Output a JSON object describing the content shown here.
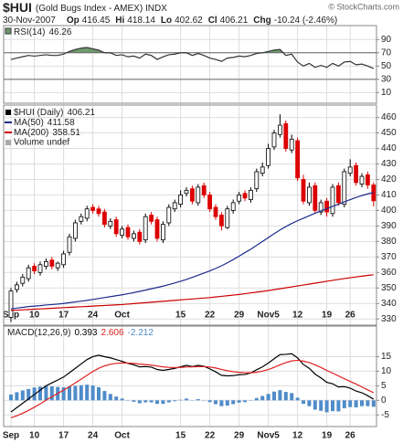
{
  "header": {
    "symbol": "$HUI",
    "name": "(Gold Bugs Index - AMEX) INDX",
    "date": "30-Nov-2007",
    "copyright": "© StockCharts.com",
    "op_label": "Op",
    "hi_label": "Hi",
    "lo_label": "Lo",
    "cl_label": "Cl",
    "chg_label": "Chg",
    "change": "-10.24 (-2.46%)"
  },
  "chart_data": [
    {
      "type": "line",
      "title": "RSI(14)",
      "ylim": [
        -6,
        111
      ],
      "yticks": [
        10,
        30,
        50,
        70,
        90
      ],
      "grid": true,
      "overbought": 70,
      "oversold": 30,
      "fill_color": "#6e9a6e",
      "series": [
        {
          "color": "#333333",
          "values": [
            60,
            62,
            64,
            66,
            65,
            66,
            67,
            66,
            66,
            68,
            72,
            75,
            77,
            78,
            76,
            74,
            70,
            70,
            66,
            67,
            64,
            65,
            62,
            68,
            66,
            60,
            64,
            67,
            68,
            70,
            70,
            66,
            69,
            66,
            62,
            60,
            57,
            62,
            63,
            65,
            64,
            66,
            69,
            70,
            72,
            74,
            75,
            66,
            68,
            56,
            50,
            54,
            48,
            51,
            48,
            54,
            50,
            56,
            57,
            52,
            53,
            50,
            46.26
          ]
        }
      ]
    },
    {
      "type": "candlestick",
      "title": "$HUI (Daily)",
      "ylim": [
        326,
        468
      ],
      "yticks": [
        330,
        340,
        350,
        360,
        370,
        380,
        390,
        400,
        410,
        420,
        430,
        440,
        450,
        460
      ],
      "grid": true,
      "up_color": "#000000",
      "down_color": "#dd0000",
      "volume_label": "Volume undef",
      "categories": [
        "Sep",
        null,
        null,
        null,
        "10",
        null,
        null,
        null,
        null,
        "17",
        null,
        null,
        null,
        null,
        "24",
        null,
        null,
        null,
        null,
        "Oct",
        null,
        null,
        null,
        null,
        null,
        null,
        null,
        null,
        null,
        "15",
        null,
        null,
        null,
        null,
        "22",
        null,
        null,
        null,
        null,
        "29",
        null,
        null,
        null,
        null,
        "Nov5",
        null,
        null,
        null,
        null,
        "12",
        null,
        null,
        null,
        null,
        "19",
        null,
        null,
        null,
        "26",
        null,
        null,
        null,
        null
      ],
      "open": [
        331,
        349,
        353,
        356,
        364,
        360,
        364,
        368,
        363,
        365,
        373,
        382,
        393,
        395,
        402,
        401,
        399,
        390,
        394,
        384,
        389,
        382,
        386,
        381,
        397,
        394,
        381,
        392,
        401,
        404,
        411,
        414,
        405,
        416,
        410,
        402,
        397,
        389,
        400,
        406,
        411,
        407,
        414,
        424,
        429,
        441,
        449,
        456,
        439,
        445,
        420,
        405,
        416,
        399,
        406,
        398,
        416,
        404,
        424,
        429,
        417,
        423,
        416.45
      ],
      "high": [
        350,
        354,
        359,
        365,
        366,
        367,
        369,
        370,
        367,
        374,
        385,
        394,
        398,
        403,
        404,
        403,
        401,
        395,
        396,
        390,
        391,
        387,
        388,
        398,
        399,
        396,
        393,
        404,
        407,
        413,
        415,
        416,
        417,
        418,
        412,
        404,
        399,
        403,
        407,
        412,
        413,
        415,
        427,
        431,
        443,
        452,
        462,
        458,
        449,
        447,
        423,
        418,
        418,
        407,
        408,
        417,
        418,
        427,
        433,
        431,
        424,
        425,
        418.14
      ],
      "low": [
        328,
        347,
        351,
        354,
        359,
        358,
        362,
        362,
        361,
        363,
        371,
        380,
        391,
        393,
        398,
        396,
        389,
        388,
        383,
        382,
        381,
        380,
        378,
        379,
        391,
        380,
        379,
        390,
        399,
        402,
        409,
        404,
        403,
        408,
        399,
        394,
        387,
        388,
        398,
        404,
        406,
        405,
        412,
        422,
        427,
        439,
        447,
        438,
        437,
        419,
        404,
        403,
        398,
        397,
        396,
        396,
        403,
        402,
        422,
        416,
        415,
        414,
        402.62
      ],
      "close": [
        348,
        352,
        357,
        363,
        361,
        365,
        367,
        364,
        366,
        372,
        383,
        392,
        396,
        401,
        400,
        398,
        391,
        393,
        385,
        388,
        383,
        385,
        380,
        396,
        393,
        382,
        391,
        402,
        405,
        410,
        413,
        406,
        415,
        410,
        401,
        396,
        390,
        401,
        405,
        410,
        408,
        413,
        425,
        428,
        440,
        450,
        455,
        440,
        446,
        421,
        406,
        415,
        400,
        405,
        399,
        415,
        405,
        425,
        428,
        418,
        422,
        416.45,
        406.21
      ],
      "series": [
        {
          "name": "MA(50)",
          "color": "#1c2a8c",
          "values": [
            336.5,
            337,
            337.5,
            338,
            338.3,
            338.6,
            339,
            339.3,
            339.6,
            340,
            340.5,
            341,
            341.5,
            342,
            342.6,
            343.2,
            343.8,
            344.4,
            345,
            345.6,
            346.3,
            347,
            347.8,
            348.6,
            349.5,
            350.3,
            351.2,
            352.2,
            353.2,
            354.3,
            355.5,
            356.8,
            358.2,
            359.6,
            361,
            362.6,
            364.3,
            366.2,
            368.3,
            370.5,
            372.8,
            375,
            377.5,
            380,
            382.5,
            385,
            387.4,
            389.6,
            391.6,
            393.4,
            395,
            396.6,
            398.2,
            399.7,
            401.1,
            402.6,
            404,
            405.5,
            407,
            408.4,
            409.6,
            410.7,
            411.58
          ]
        },
        {
          "name": "MA(200)",
          "color": "#cc0000",
          "values": [
            335.5,
            335.7,
            335.9,
            336.1,
            336.3,
            336.5,
            336.7,
            336.9,
            337.1,
            337.3,
            337.5,
            337.7,
            337.9,
            338.1,
            338.3,
            338.5,
            338.7,
            338.9,
            339.1,
            339.3,
            339.6,
            339.9,
            340.2,
            340.5,
            340.8,
            341.1,
            341.4,
            341.7,
            342,
            342.3,
            342.6,
            342.9,
            343.2,
            343.5,
            343.8,
            344.2,
            344.6,
            345,
            345.4,
            345.8,
            346.3,
            346.8,
            347.3,
            347.8,
            348.3,
            348.9,
            349.5,
            350.1,
            350.7,
            351.3,
            351.9,
            352.5,
            353.1,
            353.7,
            354.3,
            354.9,
            355.5,
            356.1,
            356.6,
            357.1,
            357.6,
            358.1,
            358.51
          ]
        }
      ]
    },
    {
      "type": "line",
      "title": "MACD(12,26,9)",
      "ylim": [
        -9,
        25.5
      ],
      "yticks": [
        -5,
        0,
        5,
        10,
        15
      ],
      "grid": true,
      "categories": [
        "Sep",
        null,
        null,
        null,
        "10",
        null,
        null,
        null,
        null,
        "17",
        null,
        null,
        null,
        null,
        "24",
        null,
        null,
        null,
        null,
        "Oct",
        null,
        null,
        null,
        null,
        null,
        null,
        null,
        null,
        null,
        "15",
        null,
        null,
        null,
        null,
        "22",
        null,
        null,
        null,
        null,
        "29",
        null,
        null,
        null,
        null,
        "Nov5",
        null,
        null,
        null,
        null,
        "12",
        null,
        null,
        null,
        null,
        "19",
        null,
        null,
        null,
        "26",
        null,
        null,
        null,
        null
      ],
      "series": [
        {
          "color": "#4f8cc9",
          "style": "bar",
          "values": [
            2,
            2.8,
            3.4,
            3.9,
            4.4,
            4.7,
            5,
            4.8,
            4.6,
            4.5,
            4.8,
            5,
            5.2,
            5.4,
            5.1,
            4.5,
            3.2,
            2.2,
            1.3,
            0.6,
            -0.1,
            -0.5,
            -1,
            -0.7,
            -0.7,
            -1.2,
            -1.2,
            -0.7,
            -0.3,
            0.2,
            0.6,
            0.1,
            0.4,
            0.1,
            -0.6,
            -1.3,
            -2,
            -1.8,
            -1.3,
            -0.8,
            -0.6,
            -0.1,
            0.8,
            1.5,
            2.2,
            3,
            3.5,
            2.9,
            2.5,
            0.9,
            -1.2,
            -2,
            -3.2,
            -3.6,
            -4.1,
            -3.7,
            -3.8,
            -2.7,
            -2.3,
            -2.4,
            -2,
            -2,
            -2.212
          ]
        },
        {
          "color": "#000000",
          "values": [
            -4,
            -2.5,
            -1,
            0.5,
            2,
            3.5,
            5,
            6,
            7,
            8,
            9.5,
            11,
            12.5,
            14,
            15,
            15.5,
            15,
            14.6,
            14,
            13.4,
            12.7,
            12.2,
            11.5,
            11.6,
            11.4,
            10.6,
            10.3,
            10.6,
            11,
            11.5,
            12,
            11.6,
            12,
            11.7,
            10.8,
            9.8,
            8.6,
            8.4,
            8.5,
            8.8,
            8.9,
            9.4,
            10.5,
            11.5,
            12.8,
            14.3,
            15.7,
            15.8,
            16,
            14.6,
            12.3,
            11,
            9,
            7.7,
            6.2,
            5.7,
            4.6,
            4.7,
            4.2,
            3.2,
            2.6,
            1.6,
            0.393
          ]
        },
        {
          "color": "#e02020",
          "values": [
            -6,
            -5.3,
            -4.44,
            -3.45,
            -2.36,
            -1.19,
            0.05,
            1.24,
            2.39,
            3.51,
            4.71,
            5.97,
            7.28,
            8.62,
            9.9,
            11.02,
            11.82,
            12.38,
            12.7,
            12.84,
            12.81,
            12.69,
            12.45,
            12.28,
            12.1,
            11.8,
            11.5,
            11.32,
            11.26,
            11.31,
            11.45,
            11.48,
            11.58,
            11.6,
            11.44,
            11.11,
            10.61,
            10.17,
            9.84,
            9.63,
            9.48,
            9.46,
            9.67,
            10.04,
            10.59,
            11.33,
            12.2,
            12.92,
            13.54,
            13.75,
            13.46,
            12.97,
            12.18,
            11.28,
            10.26,
            9.35,
            8.4,
            7.4,
            6.5,
            5.6,
            4.6,
            3.6,
            2.606
          ]
        }
      ]
    }
  ]
}
